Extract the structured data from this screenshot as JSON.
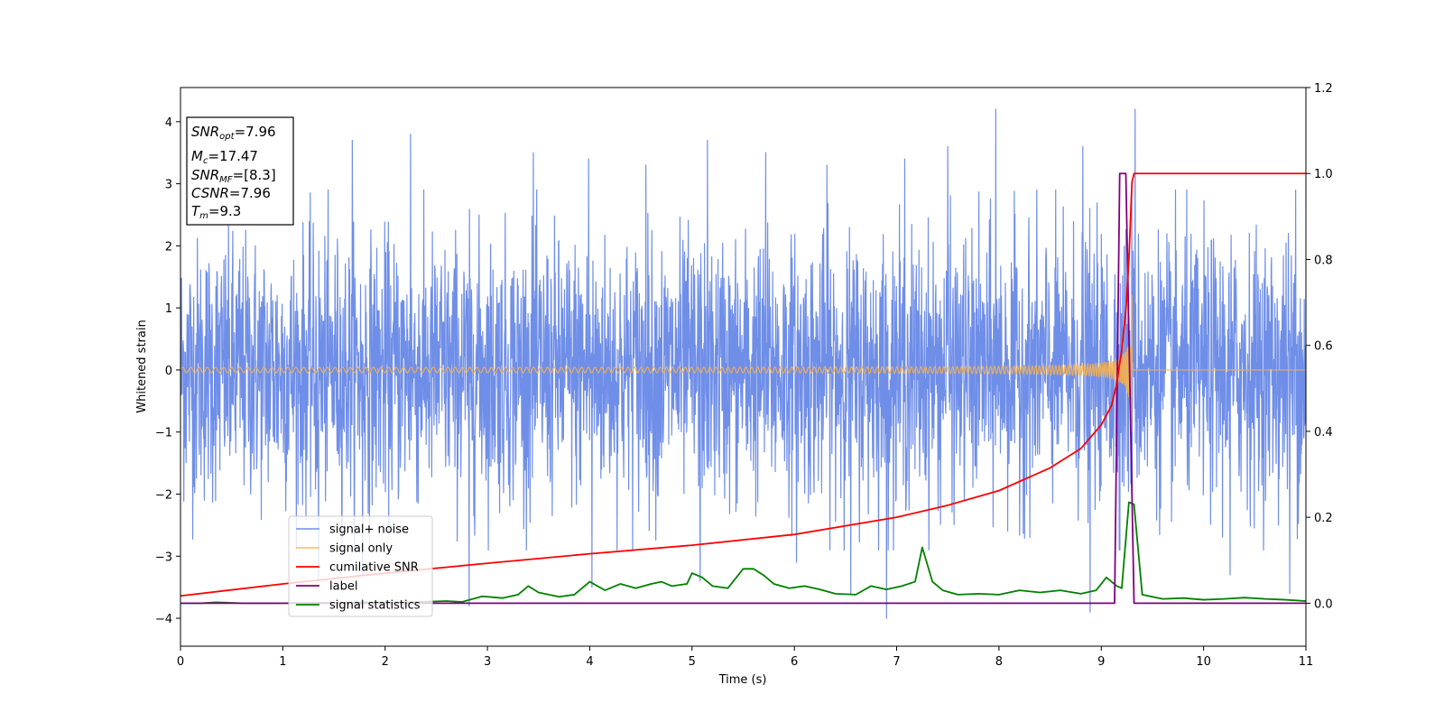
{
  "chart_data": {
    "type": "line",
    "xlabel": "Time (s)",
    "ylabel": "Whitened strain",
    "xlim": [
      0,
      11
    ],
    "ylim": [
      -4.45,
      4.55
    ],
    "y2lim": [
      -0.1,
      1.2
    ],
    "x_ticks": [
      "0",
      "1",
      "2",
      "3",
      "4",
      "5",
      "6",
      "7",
      "8",
      "9",
      "10",
      "11"
    ],
    "y_ticks": [
      "−4",
      "−3",
      "−2",
      "−1",
      "0",
      "1",
      "2",
      "3",
      "4"
    ],
    "y2_ticks": [
      "0.0",
      "0.2",
      "0.4",
      "0.6",
      "0.8",
      "1.0",
      "1.2"
    ],
    "grid": false,
    "legend_position": "lower-left",
    "info_box": {
      "snr_opt": {
        "main": "SNR",
        "sub": "opt",
        "value": "=7.96"
      },
      "mc": {
        "main": "M",
        "sub": "c",
        "value": "=17.47"
      },
      "snr_mf": {
        "main": "SNR",
        "sub": "MF",
        "value": "=[8.3]"
      },
      "csnr": {
        "main": "CSNR",
        "value": "=7.96"
      },
      "tm": {
        "main": "T",
        "sub": "m",
        "value": "=9.3"
      }
    },
    "series": [
      {
        "name": "signal+ noise",
        "color": "#6f8ee8",
        "axis": "left",
        "kind": "noise",
        "envelope_typical": 2.0,
        "peak_spikes": [
          [
            1.68,
            3.7
          ],
          [
            2.25,
            3.8
          ],
          [
            3.45,
            3.5
          ],
          [
            3.99,
            3.4
          ],
          [
            4.55,
            3.3
          ],
          [
            5.15,
            3.7
          ],
          [
            5.72,
            3.5
          ],
          [
            6.32,
            3.3
          ],
          [
            7.08,
            3.4
          ],
          [
            7.5,
            3.6
          ],
          [
            7.97,
            4.2
          ],
          [
            8.82,
            3.6
          ],
          [
            9.33,
            4.2
          ],
          [
            10.26,
            3.7
          ],
          [
            10.9,
            2.9
          ],
          [
            1.35,
            -3.4
          ],
          [
            1.78,
            -3.3
          ],
          [
            2.82,
            -3.8
          ],
          [
            4.02,
            -3.5
          ],
          [
            5.08,
            -3.4
          ],
          [
            6.02,
            -3.1
          ],
          [
            6.55,
            -3.6
          ],
          [
            6.9,
            -4.0
          ],
          [
            8.89,
            -3.9
          ],
          [
            10.26,
            -3.3
          ],
          [
            10.84,
            -3.6
          ]
        ]
      },
      {
        "name": "signal only",
        "color": "#f5b04c",
        "axis": "left",
        "kind": "chirp",
        "merger_time": 9.3,
        "peak_amplitude": 1.4
      },
      {
        "name": "cumilative SNR",
        "color": "#ff0000",
        "axis": "right",
        "points": [
          [
            0,
            0.017
          ],
          [
            1,
            0.045
          ],
          [
            2,
            0.07
          ],
          [
            3,
            0.093
          ],
          [
            4,
            0.115
          ],
          [
            5,
            0.135
          ],
          [
            6,
            0.16
          ],
          [
            7,
            0.2
          ],
          [
            7.5,
            0.228
          ],
          [
            8,
            0.262
          ],
          [
            8.5,
            0.315
          ],
          [
            8.8,
            0.36
          ],
          [
            9,
            0.415
          ],
          [
            9.1,
            0.46
          ],
          [
            9.15,
            0.51
          ],
          [
            9.2,
            0.59
          ],
          [
            9.24,
            0.68
          ],
          [
            9.27,
            0.8
          ],
          [
            9.29,
            0.92
          ],
          [
            9.3,
            0.98
          ],
          [
            9.32,
            1.0
          ],
          [
            11,
            1.0
          ]
        ]
      },
      {
        "name": "label",
        "color": "#800080",
        "axis": "right",
        "points": [
          [
            0,
            0.0
          ],
          [
            9.13,
            0.0
          ],
          [
            9.18,
            1.0
          ],
          [
            9.24,
            1.0
          ],
          [
            9.32,
            0.0
          ],
          [
            11,
            0.0
          ]
        ]
      },
      {
        "name": "signal statistics",
        "color": "#008000",
        "axis": "right",
        "points": [
          [
            0,
            0.0
          ],
          [
            0.2,
            0.0
          ],
          [
            0.35,
            0.002
          ],
          [
            0.6,
            0.0
          ],
          [
            1.0,
            0.0
          ],
          [
            1.4,
            0.001
          ],
          [
            1.8,
            0.002
          ],
          [
            2.2,
            0.002
          ],
          [
            2.6,
            0.005
          ],
          [
            2.75,
            0.003
          ],
          [
            2.95,
            0.016
          ],
          [
            3.15,
            0.012
          ],
          [
            3.3,
            0.02
          ],
          [
            3.4,
            0.04
          ],
          [
            3.5,
            0.025
          ],
          [
            3.7,
            0.015
          ],
          [
            3.85,
            0.02
          ],
          [
            4.0,
            0.05
          ],
          [
            4.15,
            0.03
          ],
          [
            4.3,
            0.045
          ],
          [
            4.45,
            0.035
          ],
          [
            4.6,
            0.045
          ],
          [
            4.7,
            0.05
          ],
          [
            4.8,
            0.04
          ],
          [
            4.95,
            0.045
          ],
          [
            5.0,
            0.07
          ],
          [
            5.1,
            0.06
          ],
          [
            5.2,
            0.04
          ],
          [
            5.35,
            0.035
          ],
          [
            5.5,
            0.08
          ],
          [
            5.6,
            0.08
          ],
          [
            5.7,
            0.065
          ],
          [
            5.8,
            0.045
          ],
          [
            5.95,
            0.035
          ],
          [
            6.1,
            0.04
          ],
          [
            6.25,
            0.032
          ],
          [
            6.4,
            0.022
          ],
          [
            6.6,
            0.02
          ],
          [
            6.75,
            0.04
          ],
          [
            6.9,
            0.032
          ],
          [
            7.05,
            0.04
          ],
          [
            7.18,
            0.05
          ],
          [
            7.25,
            0.13
          ],
          [
            7.35,
            0.05
          ],
          [
            7.45,
            0.03
          ],
          [
            7.6,
            0.02
          ],
          [
            7.8,
            0.022
          ],
          [
            8.0,
            0.02
          ],
          [
            8.2,
            0.03
          ],
          [
            8.4,
            0.025
          ],
          [
            8.6,
            0.03
          ],
          [
            8.8,
            0.022
          ],
          [
            8.95,
            0.03
          ],
          [
            9.05,
            0.06
          ],
          [
            9.15,
            0.04
          ],
          [
            9.2,
            0.035
          ],
          [
            9.27,
            0.235
          ],
          [
            9.32,
            0.23
          ],
          [
            9.4,
            0.02
          ],
          [
            9.6,
            0.01
          ],
          [
            9.8,
            0.012
          ],
          [
            10.0,
            0.008
          ],
          [
            10.2,
            0.01
          ],
          [
            10.4,
            0.013
          ],
          [
            10.6,
            0.01
          ],
          [
            10.8,
            0.008
          ],
          [
            11,
            0.005
          ]
        ]
      }
    ]
  }
}
